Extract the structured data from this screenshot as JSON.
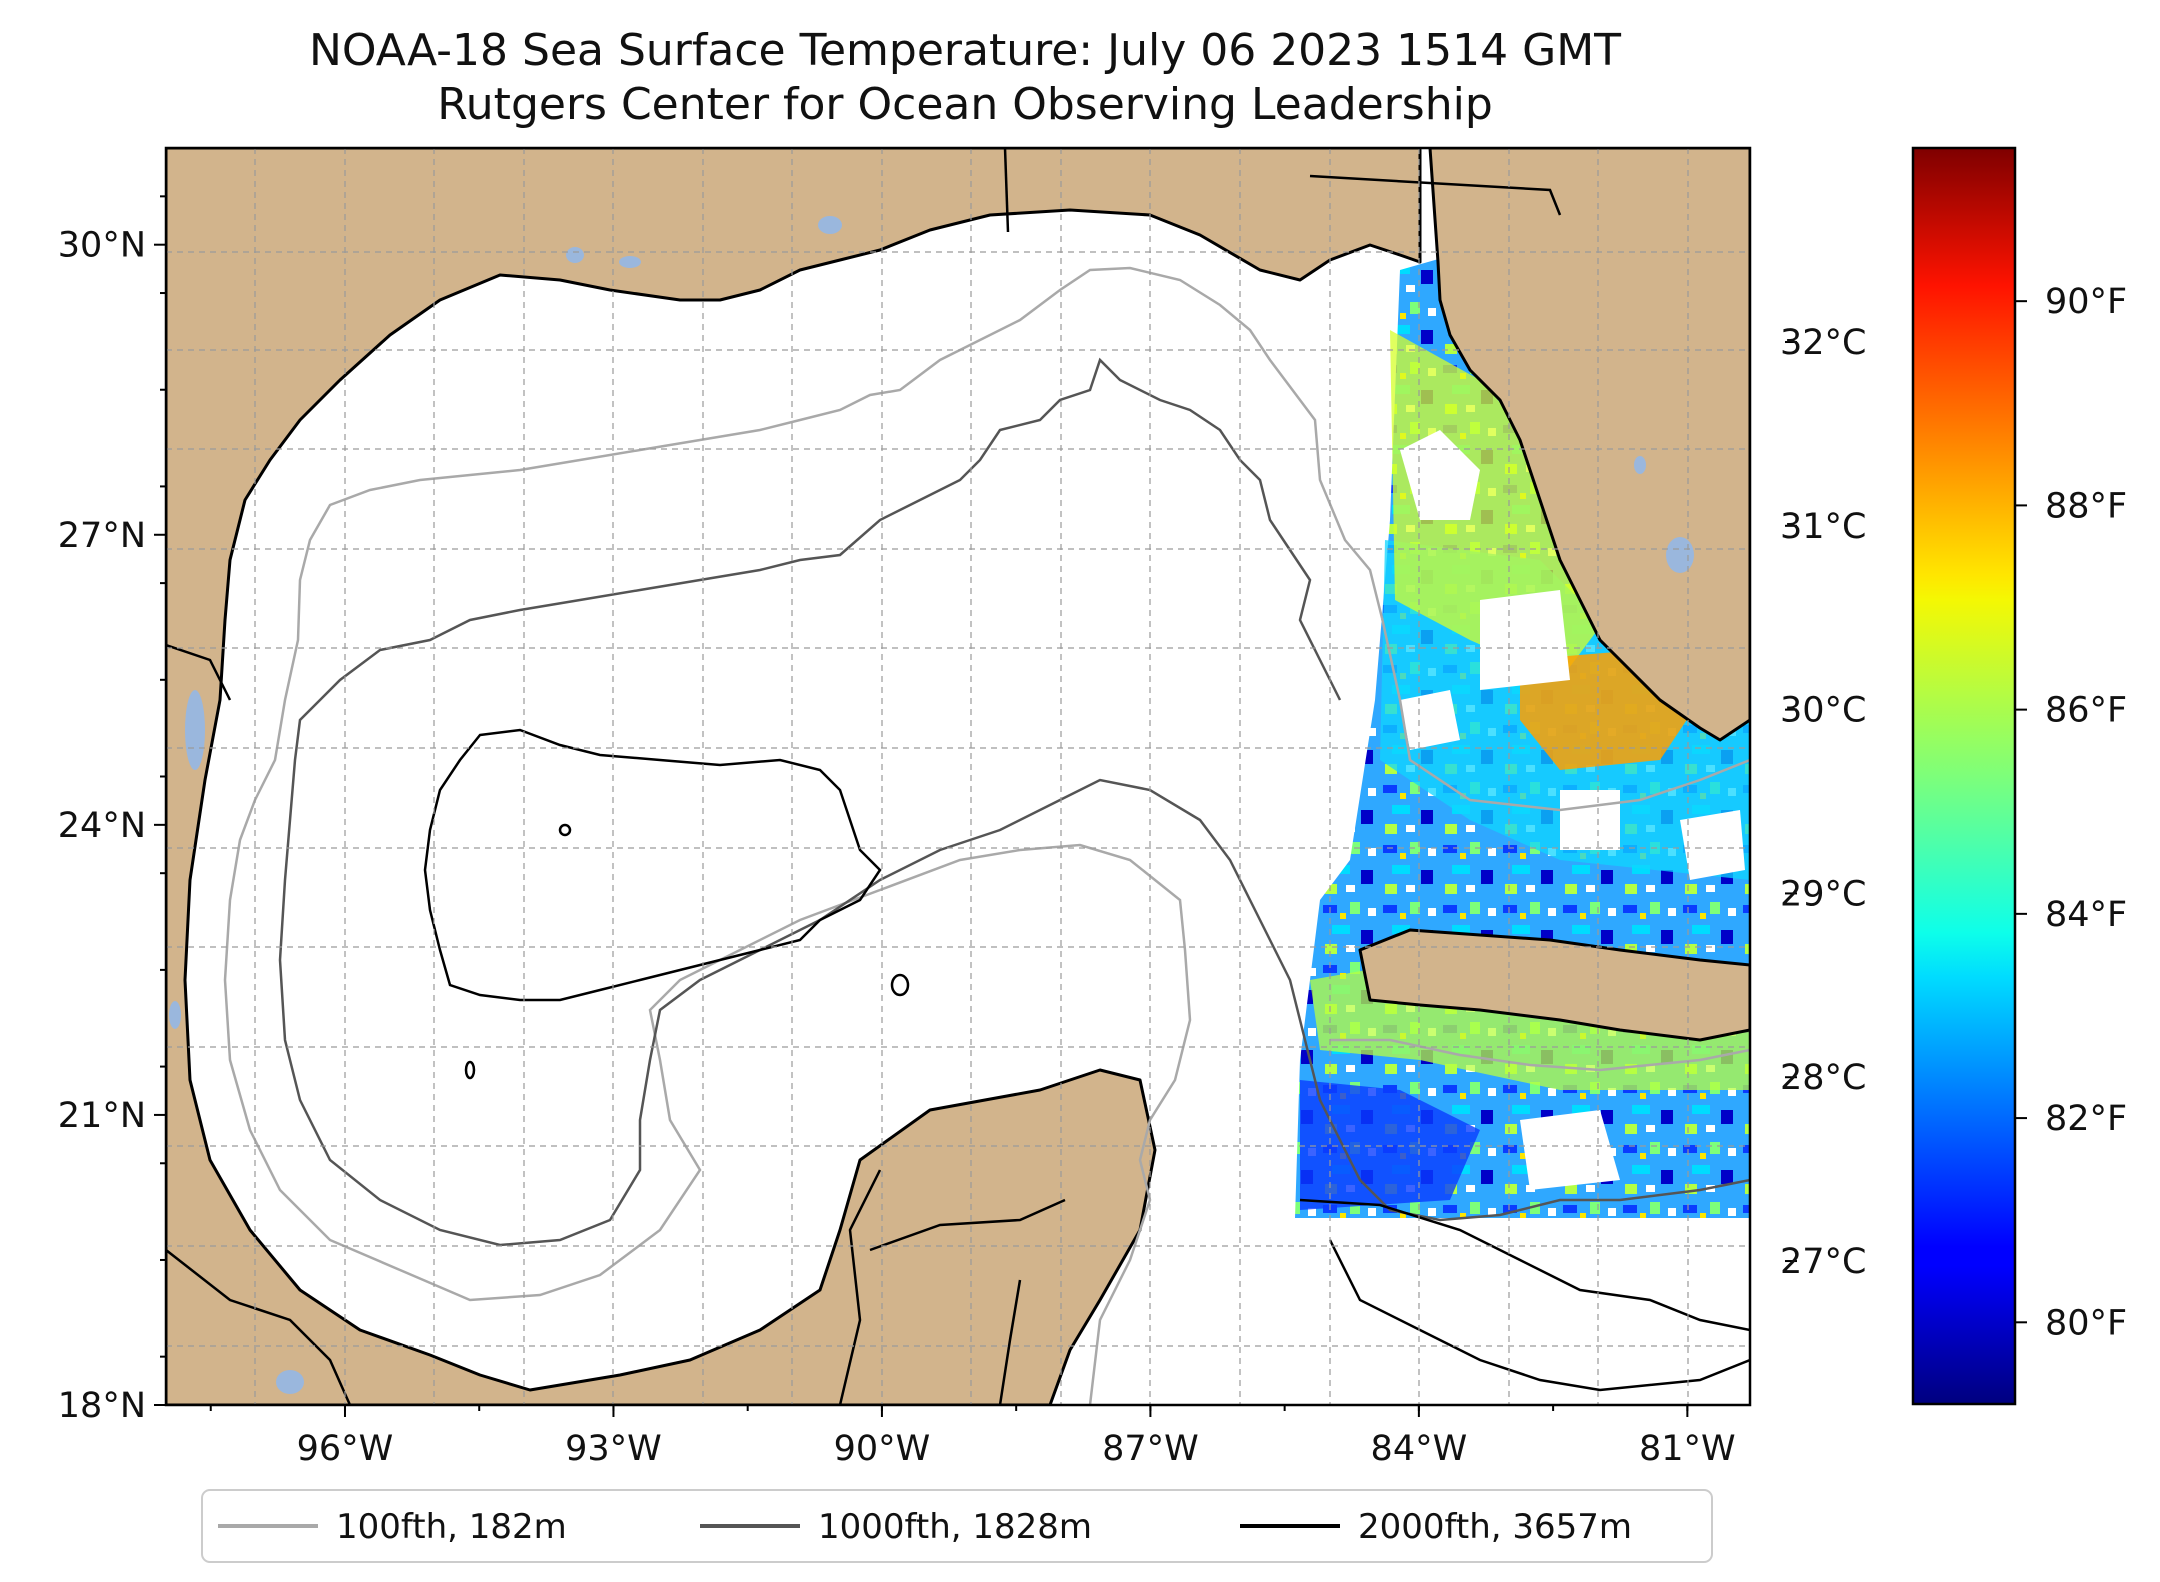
{
  "title": {
    "line1": "NOAA-18 Sea Surface Temperature: July 06 2023 1514 GMT",
    "line2": "Rutgers Center for Ocean Observing Leadership"
  },
  "map": {
    "lon_range": [
      -98,
      -80.3
    ],
    "lat_range": [
      18,
      31
    ],
    "lon_ticks": [
      {
        "value": -96,
        "label": "96°W"
      },
      {
        "value": -93,
        "label": "93°W"
      },
      {
        "value": -90,
        "label": "90°W"
      },
      {
        "value": -87,
        "label": "87°W"
      },
      {
        "value": -84,
        "label": "84°W"
      },
      {
        "value": -81,
        "label": "81°W"
      }
    ],
    "lat_ticks": [
      {
        "value": 30,
        "label": "30°N"
      },
      {
        "value": 27,
        "label": "27°N"
      },
      {
        "value": 24,
        "label": "24°N"
      },
      {
        "value": 21,
        "label": "21°N"
      },
      {
        "value": 18,
        "label": "18°N"
      }
    ],
    "grid": true,
    "colors": {
      "land": "#d2b48c",
      "ocean": "#ffffff",
      "lakes": "#9ab7dd",
      "coast": "#000000"
    }
  },
  "colorbar": {
    "colormap": "jet",
    "celsius_ticks": [
      {
        "value": 32,
        "label": "32°C"
      },
      {
        "value": 31,
        "label": "31°C"
      },
      {
        "value": 30,
        "label": "30°C"
      },
      {
        "value": 29,
        "label": "29°C"
      },
      {
        "value": 28,
        "label": "28°C"
      },
      {
        "value": 27,
        "label": "27°C"
      }
    ],
    "fahrenheit_ticks": [
      {
        "value": 90,
        "label": "90°F"
      },
      {
        "value": 88,
        "label": "88°F"
      },
      {
        "value": 86,
        "label": "86°F"
      },
      {
        "value": 84,
        "label": "84°F"
      },
      {
        "value": 82,
        "label": "82°F"
      },
      {
        "value": 80,
        "label": "80°F"
      }
    ],
    "range_f": [
      79.2,
      91.5
    ]
  },
  "legend": {
    "items": [
      {
        "label": "100fth, 182m",
        "color": "#a9a9a9"
      },
      {
        "label": "1000fth, 1828m",
        "color": "#555555"
      },
      {
        "label": "2000fth, 3657m",
        "color": "#000000"
      }
    ]
  }
}
